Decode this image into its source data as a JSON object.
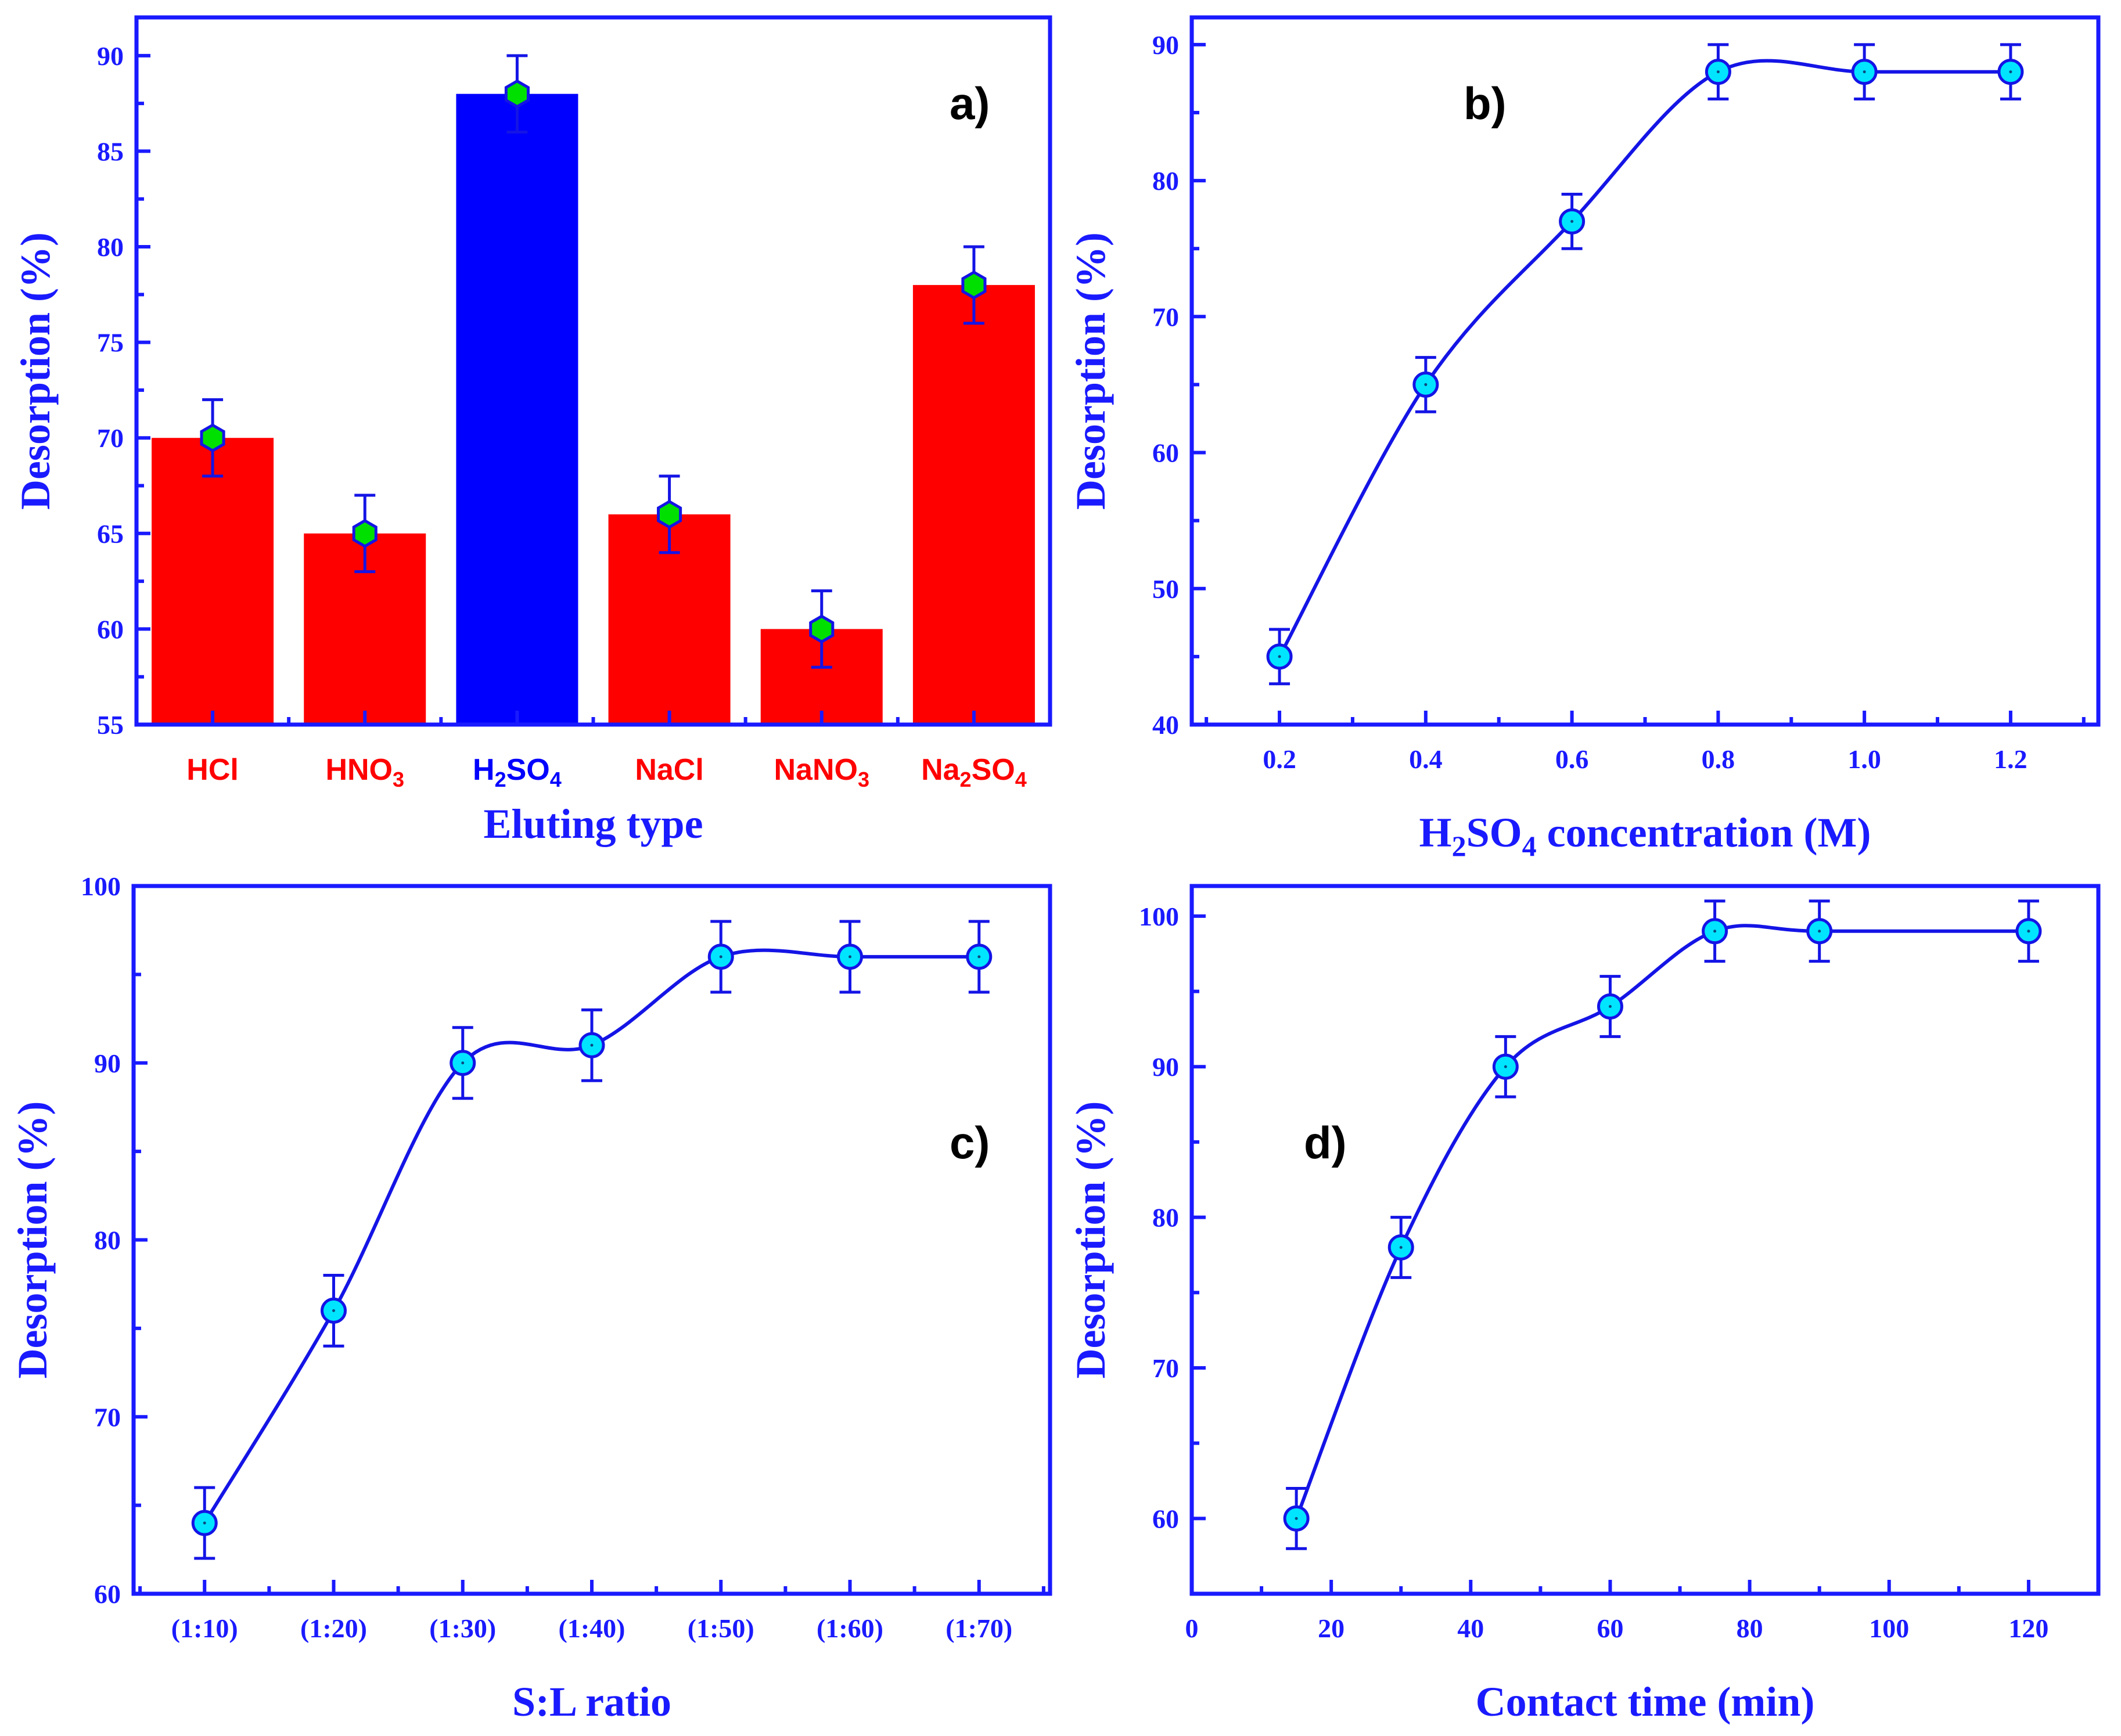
{
  "chart_data": [
    {
      "id": "a",
      "type": "bar",
      "panel_label": "a)",
      "categories": [
        "HCl",
        "HNO3",
        "H2SO4",
        "NaCl",
        "NaNO3",
        "Na2SO4"
      ],
      "category_labels": [
        {
          "base": "HCl",
          "sub": "",
          "tail": ""
        },
        {
          "base": "HNO",
          "sub": "3",
          "tail": ""
        },
        {
          "base": "H",
          "sub": "2",
          "tail": "SO",
          "sub2": "4"
        },
        {
          "base": "NaCl",
          "sub": "",
          "tail": ""
        },
        {
          "base": "NaNO",
          "sub": "3",
          "tail": ""
        },
        {
          "base": "Na",
          "sub": "2",
          "tail": "SO",
          "sub2": "4"
        }
      ],
      "values": [
        70,
        65,
        88,
        66,
        60,
        78
      ],
      "errors": [
        2,
        2,
        2,
        2,
        2,
        2
      ],
      "bar_colors": [
        "#ff0000",
        "#ff0000",
        "#0000ff",
        "#ff0000",
        "#ff0000",
        "#ff0000"
      ],
      "label_colors": [
        "#ff0000",
        "#ff0000",
        "#0000ff",
        "#ff0000",
        "#ff0000",
        "#ff0000"
      ],
      "xlabel": "Eluting type",
      "ylabel": "Desorption (%)",
      "ylim": [
        55,
        92
      ],
      "yticks": [
        55,
        60,
        65,
        70,
        75,
        80,
        85,
        90
      ],
      "marker_color": "#00e000"
    },
    {
      "id": "b",
      "type": "line",
      "panel_label": "b)",
      "x": [
        0.2,
        0.4,
        0.6,
        0.8,
        1.0,
        1.2
      ],
      "values": [
        45,
        65,
        77,
        88,
        88,
        88
      ],
      "errors": [
        2,
        2,
        2,
        2,
        2,
        2
      ],
      "xlabel_parts": {
        "base": "H",
        "sub": "2",
        "mid": "SO",
        "sub2": "4",
        "tail": " concentration (M)"
      },
      "ylabel": "Desorption (%)",
      "xlim": [
        0.08,
        1.32
      ],
      "ylim": [
        40,
        92
      ],
      "xticks": [
        0.2,
        0.4,
        0.6,
        0.8,
        1.0,
        1.2
      ],
      "xtick_labels": [
        "0.2",
        "0.4",
        "0.6",
        "0.8",
        "1.0",
        "1.2"
      ],
      "yticks": [
        40,
        50,
        60,
        70,
        80,
        90
      ],
      "marker_color": "#00e5ff"
    },
    {
      "id": "c",
      "type": "line",
      "panel_label": "c)",
      "x": [
        1,
        2,
        3,
        4,
        5,
        6,
        7
      ],
      "values": [
        64,
        76,
        90,
        91,
        96,
        96,
        96
      ],
      "errors": [
        2,
        2,
        2,
        2,
        2,
        2,
        2
      ],
      "xlabel": "S:L ratio",
      "ylabel": "Desorption (%)",
      "xlim": [
        0.45,
        7.55
      ],
      "ylim": [
        60,
        100
      ],
      "xticks": [
        1,
        2,
        3,
        4,
        5,
        6,
        7
      ],
      "xtick_labels": [
        "(1:10)",
        "(1:20)",
        "(1:30)",
        "(1:40)",
        "(1:50)",
        "(1:60)",
        "(1:70)"
      ],
      "yticks": [
        60,
        70,
        80,
        90,
        100
      ],
      "marker_color": "#00e5ff"
    },
    {
      "id": "d",
      "type": "line",
      "panel_label": "d)",
      "x": [
        15,
        30,
        45,
        60,
        75,
        90,
        120
      ],
      "values": [
        60,
        78,
        90,
        94,
        99,
        99,
        99
      ],
      "errors": [
        2,
        2,
        2,
        2,
        2,
        2,
        2
      ],
      "xlabel": "Contact time (min)",
      "ylabel": "Desorption (%)",
      "xlim": [
        0,
        130
      ],
      "ylim": [
        55,
        102
      ],
      "xticks": [
        0,
        20,
        40,
        60,
        80,
        100,
        120
      ],
      "xtick_labels": [
        "0",
        "20",
        "40",
        "60",
        "80",
        "100",
        "120"
      ],
      "yticks": [
        60,
        70,
        80,
        90,
        100
      ],
      "marker_color": "#00e5ff"
    }
  ],
  "colors": {
    "axis": "#1a1aff",
    "line": "#1414e6",
    "text": "#1a1aff"
  }
}
